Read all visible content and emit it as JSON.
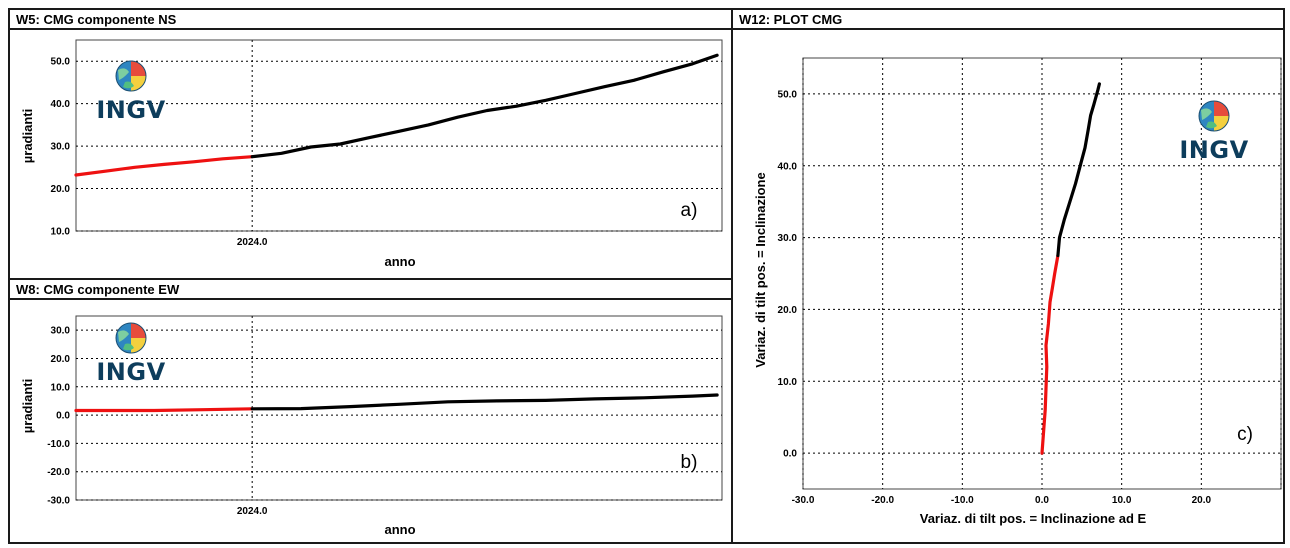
{
  "panels": {
    "ns": {
      "title": "W5: CMG componente NS"
    },
    "ew": {
      "title": "W8: CMG componente EW"
    },
    "plot": {
      "title": "W12: PLOT CMG"
    }
  },
  "logo": {
    "text": "INGV"
  },
  "colors": {
    "before_2024": "#ee1111",
    "after_2024": "#000000"
  },
  "chart_data": [
    {
      "id": "ns",
      "type": "line",
      "title": "W5: CMG componente NS",
      "xlabel": "anno",
      "ylabel": "µradianti",
      "panel_label": "a)",
      "xlim": [
        2023.64,
        2024.96
      ],
      "ylim": [
        10,
        55
      ],
      "xticks": [
        {
          "v": 2024.0,
          "label": "2024.0"
        }
      ],
      "yticks": [
        {
          "v": 10,
          "label": "10.0"
        },
        {
          "v": 20,
          "label": "20.0"
        },
        {
          "v": 30,
          "label": "30.0"
        },
        {
          "v": 40,
          "label": "40.0"
        },
        {
          "v": 50,
          "label": "50.0"
        }
      ],
      "grid": true,
      "series": [
        {
          "color": "#ee1111",
          "x": [
            2023.64,
            2023.7,
            2023.76,
            2023.82,
            2023.88,
            2023.94,
            2024.0
          ],
          "y": [
            23.2,
            24.1,
            25.0,
            25.7,
            26.3,
            27.0,
            27.5
          ]
        },
        {
          "color": "#000000",
          "x": [
            2024.0,
            2024.06,
            2024.12,
            2024.18,
            2024.24,
            2024.3,
            2024.36,
            2024.42,
            2024.48,
            2024.54,
            2024.6,
            2024.66,
            2024.72,
            2024.78,
            2024.84,
            2024.9,
            2024.95
          ],
          "y": [
            27.5,
            28.3,
            29.8,
            30.5,
            32.0,
            33.5,
            35.0,
            36.8,
            38.4,
            39.4,
            40.8,
            42.4,
            44.0,
            45.5,
            47.5,
            49.4,
            51.4
          ]
        }
      ]
    },
    {
      "id": "ew",
      "type": "line",
      "title": "W8: CMG componente EW",
      "xlabel": "anno",
      "ylabel": "µradianti",
      "panel_label": "b)",
      "xlim": [
        2023.64,
        2024.96
      ],
      "ylim": [
        -30,
        35
      ],
      "xticks": [
        {
          "v": 2024.0,
          "label": "2024.0"
        }
      ],
      "yticks": [
        {
          "v": -30,
          "label": "-30.0"
        },
        {
          "v": -20,
          "label": "-20.0"
        },
        {
          "v": -10,
          "label": "-10.0"
        },
        {
          "v": 0,
          "label": "0.0"
        },
        {
          "v": 10,
          "label": "10.0"
        },
        {
          "v": 20,
          "label": "20.0"
        },
        {
          "v": 30,
          "label": "30.0"
        }
      ],
      "grid": true,
      "series": [
        {
          "color": "#ee1111",
          "x": [
            2023.64,
            2023.8,
            2023.9,
            2024.0
          ],
          "y": [
            1.6,
            1.6,
            1.9,
            2.2
          ]
        },
        {
          "color": "#000000",
          "x": [
            2024.0,
            2024.1,
            2024.2,
            2024.3,
            2024.4,
            2024.5,
            2024.6,
            2024.7,
            2024.8,
            2024.9,
            2024.95
          ],
          "y": [
            2.2,
            2.3,
            3.0,
            3.8,
            4.7,
            5.0,
            5.2,
            5.7,
            6.1,
            6.7,
            7.1
          ]
        }
      ]
    },
    {
      "id": "plot",
      "type": "line",
      "title": "W12: PLOT CMG",
      "xlabel": "Variaz. di tilt pos. = Inclinazione ad E",
      "ylabel": "Variaz. di tilt pos. = Inclinazione",
      "panel_label": "c)",
      "xlim": [
        -30,
        30
      ],
      "ylim": [
        -5,
        55
      ],
      "xticks": [
        {
          "v": -30,
          "label": "-30.0"
        },
        {
          "v": -20,
          "label": "-20.0"
        },
        {
          "v": -10,
          "label": "-10.0"
        },
        {
          "v": 0,
          "label": "0.0"
        },
        {
          "v": 10,
          "label": "10.0"
        },
        {
          "v": 20,
          "label": "20.0"
        }
      ],
      "yticks": [
        {
          "v": 0,
          "label": "0.0"
        },
        {
          "v": 10,
          "label": "10.0"
        },
        {
          "v": 20,
          "label": "20.0"
        },
        {
          "v": 30,
          "label": "30.0"
        },
        {
          "v": 40,
          "label": "40.0"
        },
        {
          "v": 50,
          "label": "50.0"
        }
      ],
      "grid": true,
      "series": [
        {
          "color": "#ee1111",
          "x": [
            0.0,
            0.2,
            0.4,
            0.5,
            0.6,
            0.5,
            0.8,
            1.0,
            1.3,
            1.6,
            2.0
          ],
          "y": [
            0.0,
            3.0,
            6.0,
            9.0,
            12.0,
            15.0,
            18.0,
            21.0,
            23.0,
            25.0,
            27.5
          ]
        },
        {
          "color": "#000000",
          "x": [
            2.0,
            2.2,
            2.8,
            3.5,
            4.2,
            4.8,
            5.4,
            5.8,
            6.1,
            6.5,
            7.0,
            7.2
          ],
          "y": [
            27.5,
            30.0,
            32.5,
            35.0,
            37.5,
            40.0,
            42.5,
            45.0,
            47.0,
            48.5,
            50.5,
            51.4
          ]
        }
      ]
    }
  ]
}
